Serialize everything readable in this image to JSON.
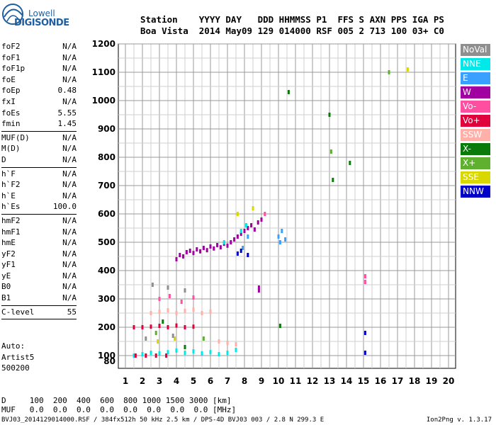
{
  "logo": {
    "line1": "Lowell",
    "line2": "DIGISONDE"
  },
  "header": {
    "row1": "Station    YYYY DAY   DDD HHMMSS P1  FFS S AXN PPS IGA PS",
    "row2": "Boa Vista  2014 May09 129 014000 RSF 005 2 713 100 03+ C0"
  },
  "param_groups": [
    [
      {
        "name": "foF2",
        "value": "N/A"
      },
      {
        "name": "foF1",
        "value": "N/A"
      },
      {
        "name": "foF1p",
        "value": "N/A"
      },
      {
        "name": "foE",
        "value": "N/A"
      },
      {
        "name": "foEp",
        "value": "0.48"
      },
      {
        "name": "fxI",
        "value": "N/A"
      },
      {
        "name": "foEs",
        "value": "5.55"
      },
      {
        "name": "fmin",
        "value": "1.45"
      }
    ],
    [
      {
        "name": "MUF(D)",
        "value": "N/A"
      },
      {
        "name": "M(D)",
        "value": "N/A"
      },
      {
        "name": "D",
        "value": "N/A"
      }
    ],
    [
      {
        "name": "h`F",
        "value": "N/A"
      },
      {
        "name": "h`F2",
        "value": "N/A"
      },
      {
        "name": "h`E",
        "value": "N/A"
      },
      {
        "name": "h`Es",
        "value": "100.0"
      }
    ],
    [
      {
        "name": "hmF2",
        "value": "N/A"
      },
      {
        "name": "hmF1",
        "value": "N/A"
      },
      {
        "name": "hmE",
        "value": "N/A"
      },
      {
        "name": "yF2",
        "value": "N/A"
      },
      {
        "name": "yF1",
        "value": "N/A"
      },
      {
        "name": "yE",
        "value": "N/A"
      },
      {
        "name": "B0",
        "value": "N/A"
      },
      {
        "name": "B1",
        "value": "N/A"
      }
    ],
    [
      {
        "name": "C-level",
        "value": "55"
      }
    ]
  ],
  "auto": {
    "label": "Auto:",
    "line2": "Artist5",
    "line3": "500200"
  },
  "legend": [
    {
      "label": "NoVal",
      "color": "#8f8f8f"
    },
    {
      "label": "NNE",
      "color": "#00e8e8"
    },
    {
      "label": "E",
      "color": "#3aa0ff"
    },
    {
      "label": "W",
      "color": "#a000a0"
    },
    {
      "label": "Vo-",
      "color": "#ff4fa0"
    },
    {
      "label": "Vo+",
      "color": "#e0003c"
    },
    {
      "label": "SSW",
      "color": "#ffb0a8"
    },
    {
      "label": "X-",
      "color": "#0a7a0a"
    },
    {
      "label": "X+",
      "color": "#60b030"
    },
    {
      "label": "SSE",
      "color": "#d8d800"
    },
    {
      "label": "NNW",
      "color": "#0000c8"
    }
  ],
  "footer": {
    "row1": "D     100  200  400  600  800 1000 1500 3000 [km]",
    "row2": "MUF   0.0  0.0  0.0  0.0  0.0  0.0  0.0  0.0 [MHz]",
    "filename": "BVJ03_2014129014000.RSF / 384fx512h 50 kHz 2.5 km / DPS-4D BVJ03 003 / 2.8 N 299.3 E",
    "version": "Ion2Png v. 1.3.17"
  },
  "chart_data": {
    "type": "scatter",
    "xlabel": "",
    "ylabel": "",
    "x_ticks": [
      1,
      2,
      3,
      4,
      5,
      6,
      7,
      8,
      9,
      10,
      11,
      12,
      13,
      14,
      15,
      16,
      17,
      18,
      19,
      20
    ],
    "y_ticks": [
      80,
      100,
      200,
      300,
      400,
      500,
      600,
      700,
      800,
      900,
      1000,
      1100,
      1200
    ],
    "xlim": [
      1,
      20
    ],
    "ylim": [
      80,
      1200
    ],
    "grid": true,
    "legend_position": "right",
    "series": [
      {
        "name": "W",
        "color": "#a000a0",
        "points": [
          [
            4.0,
            440
          ],
          [
            4.2,
            455
          ],
          [
            4.4,
            450
          ],
          [
            4.6,
            465
          ],
          [
            4.8,
            470
          ],
          [
            5.0,
            462
          ],
          [
            5.2,
            475
          ],
          [
            5.4,
            468
          ],
          [
            5.6,
            480
          ],
          [
            5.8,
            472
          ],
          [
            6.0,
            485
          ],
          [
            6.2,
            478
          ],
          [
            6.4,
            490
          ],
          [
            6.6,
            482
          ],
          [
            6.8,
            495
          ],
          [
            7.0,
            488
          ],
          [
            7.2,
            500
          ],
          [
            7.4,
            510
          ],
          [
            7.6,
            520
          ],
          [
            7.8,
            530
          ],
          [
            8.0,
            540
          ],
          [
            8.2,
            550
          ],
          [
            8.4,
            560
          ],
          [
            8.6,
            545
          ],
          [
            8.8,
            570
          ],
          [
            9.0,
            580
          ],
          [
            8.85,
            340
          ],
          [
            8.85,
            330
          ]
        ]
      },
      {
        "name": "NNE",
        "color": "#00e8e8",
        "points": [
          [
            1.5,
            100
          ],
          [
            2.0,
            105
          ],
          [
            2.5,
            110
          ],
          [
            3.0,
            108
          ],
          [
            3.5,
            112
          ],
          [
            4.0,
            118
          ],
          [
            4.5,
            110
          ],
          [
            5.0,
            115
          ],
          [
            5.5,
            108
          ],
          [
            6.0,
            112
          ],
          [
            6.5,
            105
          ],
          [
            7.0,
            110
          ],
          [
            7.5,
            120
          ],
          [
            7.8,
            540
          ],
          [
            8.1,
            560
          ],
          [
            6.8,
            500
          ]
        ]
      },
      {
        "name": "E",
        "color": "#3aa0ff",
        "points": [
          [
            10.0,
            520
          ],
          [
            10.2,
            540
          ],
          [
            10.4,
            510
          ],
          [
            10.1,
            500
          ],
          [
            7.9,
            480
          ],
          [
            8.2,
            520
          ]
        ]
      },
      {
        "name": "NNW",
        "color": "#0000c8",
        "points": [
          [
            7.6,
            460
          ],
          [
            7.8,
            470
          ],
          [
            8.2,
            455
          ],
          [
            15.1,
            180
          ],
          [
            15.1,
            110
          ]
        ]
      },
      {
        "name": "Vo-",
        "color": "#ff4fa0",
        "points": [
          [
            3.0,
            300
          ],
          [
            3.6,
            310
          ],
          [
            4.3,
            290
          ],
          [
            5.0,
            305
          ],
          [
            15.1,
            380
          ],
          [
            15.1,
            360
          ],
          [
            9.2,
            600
          ]
        ]
      },
      {
        "name": "Vo+",
        "color": "#e0003c",
        "points": [
          [
            1.5,
            200
          ],
          [
            2.0,
            200
          ],
          [
            2.5,
            202
          ],
          [
            3.0,
            205
          ],
          [
            3.5,
            200
          ],
          [
            4.0,
            206
          ],
          [
            4.5,
            200
          ],
          [
            5.0,
            202
          ],
          [
            1.6,
            100
          ],
          [
            2.2,
            100
          ],
          [
            2.8,
            100
          ],
          [
            3.4,
            100
          ]
        ]
      },
      {
        "name": "SSW",
        "color": "#ffb0a8",
        "points": [
          [
            2.5,
            250
          ],
          [
            3.0,
            255
          ],
          [
            3.5,
            260
          ],
          [
            4.0,
            250
          ],
          [
            4.5,
            258
          ],
          [
            5.0,
            262
          ],
          [
            5.5,
            250
          ],
          [
            6.0,
            255
          ],
          [
            6.5,
            150
          ],
          [
            7.0,
            145
          ],
          [
            7.5,
            140
          ]
        ]
      },
      {
        "name": "X-",
        "color": "#0a7a0a",
        "points": [
          [
            3.2,
            220
          ],
          [
            4.5,
            130
          ],
          [
            10.1,
            205
          ],
          [
            13.0,
            950
          ],
          [
            13.2,
            720
          ],
          [
            14.2,
            780
          ],
          [
            10.6,
            1030
          ]
        ]
      },
      {
        "name": "X+",
        "color": "#60b030",
        "points": [
          [
            2.8,
            180
          ],
          [
            5.6,
            160
          ],
          [
            13.1,
            820
          ],
          [
            16.5,
            1100
          ]
        ]
      },
      {
        "name": "SSE",
        "color": "#d8d800",
        "points": [
          [
            2.9,
            150
          ],
          [
            3.9,
            160
          ],
          [
            7.6,
            600
          ],
          [
            8.5,
            620
          ],
          [
            17.6,
            1110
          ]
        ]
      },
      {
        "name": "NoVal",
        "color": "#8f8f8f",
        "points": [
          [
            2.6,
            350
          ],
          [
            3.5,
            340
          ],
          [
            4.5,
            330
          ],
          [
            2.2,
            160
          ],
          [
            3.8,
            170
          ]
        ]
      }
    ]
  }
}
